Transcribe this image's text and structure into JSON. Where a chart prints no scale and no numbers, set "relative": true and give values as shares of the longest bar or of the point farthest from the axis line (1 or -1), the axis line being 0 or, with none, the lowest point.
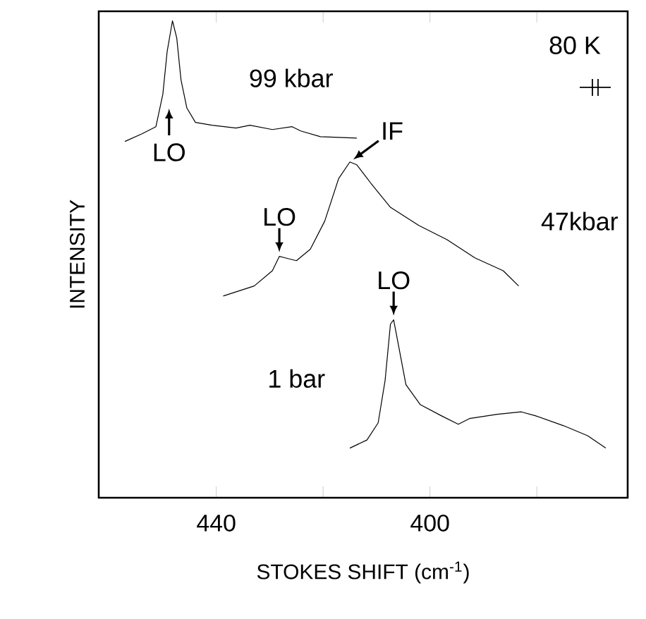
{
  "chart_data": {
    "type": "line",
    "relative": true,
    "xlabel": "STOKES SHIFT (cm$^{-1}$)",
    "ylabel": "INTENSITY",
    "xlim": [
      462,
      363
    ],
    "xticks": [
      440,
      {
        "value": 420,
        "label": null
      },
      400,
      {
        "value": 380,
        "label": null
      }
    ],
    "series": [
      {
        "name": "99 kbar",
        "color": "#000000",
        "x": [
          457.1,
          453.9,
          451.3,
          450.0,
          449.2,
          448.2,
          447.4,
          446.6,
          445.5,
          443.9,
          440.8,
          436.3,
          433.7,
          429.5,
          425.8,
          424.2,
          420.5,
          413.7
        ],
        "values": [
          0.747,
          0.763,
          0.778,
          0.846,
          0.935,
          1.0,
          0.964,
          0.876,
          0.817,
          0.787,
          0.781,
          0.775,
          0.781,
          0.772,
          0.778,
          0.769,
          0.757,
          0.754
        ]
      },
      {
        "name": "47kbar",
        "color": "#000000",
        "x": [
          438.7,
          432.9,
          429.5,
          428.2,
          427.1,
          425.0,
          422.4,
          419.7,
          417.1,
          415.0,
          413.7,
          411.1,
          407.4,
          402.1,
          396.8,
          391.6,
          386.3,
          383.4
        ],
        "values": [
          0.423,
          0.444,
          0.476,
          0.506,
          0.503,
          0.497,
          0.521,
          0.58,
          0.669,
          0.704,
          0.698,
          0.66,
          0.609,
          0.571,
          0.541,
          0.503,
          0.476,
          0.444
        ]
      },
      {
        "name": "1 bar",
        "color": "#000000",
        "x": [
          415.0,
          411.8,
          409.7,
          408.4,
          407.4,
          406.8,
          405.8,
          404.5,
          401.8,
          397.9,
          394.7,
          392.6,
          387.4,
          382.9,
          380.3,
          375.0,
          370.5,
          367.1
        ],
        "values": [
          0.104,
          0.121,
          0.157,
          0.246,
          0.364,
          0.373,
          0.314,
          0.237,
          0.195,
          0.172,
          0.154,
          0.166,
          0.175,
          0.18,
          0.172,
          0.151,
          0.13,
          0.104
        ]
      }
    ],
    "annotations": [
      "LO",
      {
        "text": "LO",
        "x": 428.2,
        "y": 0.506
      },
      {
        "text": "LO",
        "x": 406.8,
        "y": 0.373
      },
      {
        "text": "IF",
        "x": 415.0,
        "y": 0.704
      },
      "80 K"
    ],
    "marker": "none",
    "line_style": "solid",
    "legend": false,
    "grid": false
  }
}
